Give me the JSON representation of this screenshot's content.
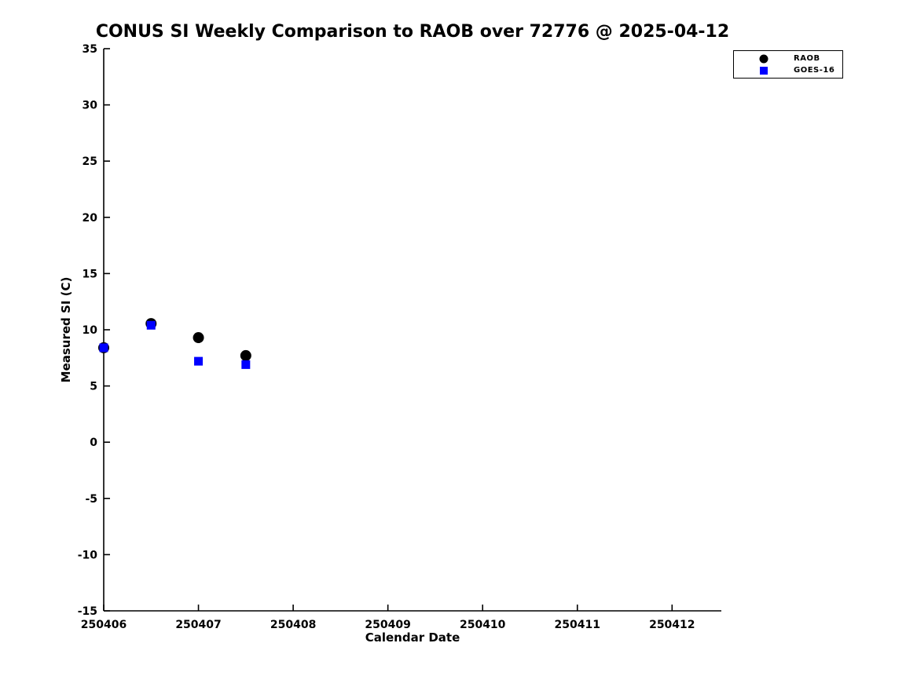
{
  "chart_data": {
    "type": "scatter",
    "title": "CONUS SI Weekly Comparison to RAOB over 72776 @ 2025-04-12",
    "xlabel": "Calendar Date",
    "ylabel": "Measured SI (C)",
    "xlim": [
      250406,
      250412.52
    ],
    "ylim": [
      -15,
      35
    ],
    "xticks": [
      250406,
      250407,
      250408,
      250409,
      250410,
      250411,
      250412
    ],
    "yticks": [
      -15,
      -10,
      -5,
      0,
      5,
      10,
      15,
      20,
      25,
      30,
      35
    ],
    "grid": false,
    "legend_position": "top-right",
    "axis_color": "#000000",
    "series": [
      {
        "name": "RAOB",
        "marker": "circle",
        "color": "#000000",
        "x": [
          250406,
          250406.5,
          250407,
          250407.5
        ],
        "y": [
          8.4,
          10.55,
          9.3,
          7.7
        ]
      },
      {
        "name": "GOES-16",
        "marker": "square",
        "color": "#0000ff",
        "x": [
          250406,
          250406.5,
          250407,
          250407.5
        ],
        "y": [
          8.4,
          10.4,
          7.2,
          6.9
        ]
      }
    ]
  }
}
